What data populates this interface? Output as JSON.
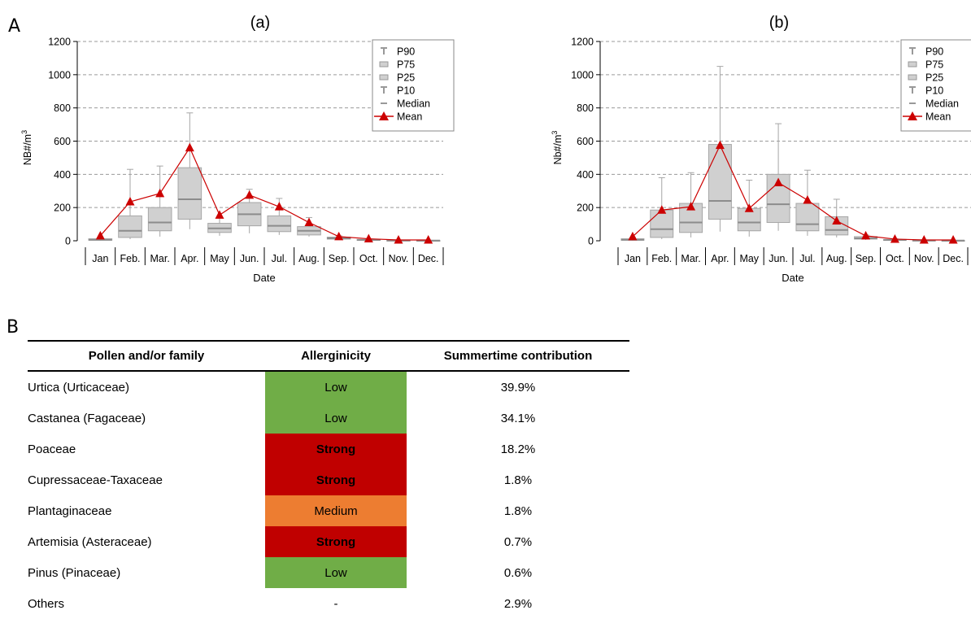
{
  "panels": {
    "A": "A",
    "B": "B"
  },
  "colors": {
    "box_fill": "#d0d0d0",
    "box_stroke": "#a6a6a6",
    "mean": "#cc0000",
    "grid": "#9a9a9a",
    "low": "#70ad47",
    "strong": "#c00000",
    "medium": "#ed7d31"
  },
  "chart_data": [
    {
      "type": "box",
      "title": "(a)",
      "xlabel": "Date",
      "ylabel": "NB#/m3",
      "ylabel_main": "NB#/m",
      "ylabel_sup": "3",
      "ylim": [
        0,
        1200
      ],
      "yticks": [
        "0",
        "200",
        "400",
        "600",
        "800",
        "1000",
        "1200"
      ],
      "grid": true,
      "legend_position": "top-right",
      "legend": [
        "P90",
        "P75",
        "P25",
        "P10",
        "Median",
        "Mean"
      ],
      "categories": [
        "Jan",
        "Feb.",
        "Mar.",
        "Apr.",
        "May",
        "Jun.",
        "Jul.",
        "Aug.",
        "Sep.",
        "Oct.",
        "Nov.",
        "Dec."
      ],
      "p10": [
        1,
        10,
        25,
        70,
        30,
        45,
        35,
        25,
        5,
        2,
        1,
        1
      ],
      "p25": [
        3,
        20,
        60,
        130,
        50,
        90,
        55,
        35,
        10,
        3,
        1,
        1
      ],
      "median": [
        6,
        60,
        110,
        250,
        75,
        160,
        90,
        60,
        15,
        5,
        2,
        1
      ],
      "p75": [
        12,
        150,
        200,
        440,
        105,
        230,
        150,
        85,
        22,
        8,
        3,
        2
      ],
      "p90": [
        20,
        430,
        450,
        770,
        140,
        310,
        255,
        140,
        30,
        12,
        5,
        3
      ],
      "mean": [
        30,
        235,
        285,
        560,
        155,
        275,
        205,
        110,
        25,
        12,
        5,
        5
      ]
    },
    {
      "type": "box",
      "title": "(b)",
      "xlabel": "Date",
      "ylabel": "Nb#/m3",
      "ylabel_main": "Nb#/m",
      "ylabel_sup": "3",
      "ylim": [
        0,
        1200
      ],
      "yticks": [
        "0",
        "200",
        "400",
        "600",
        "800",
        "1000",
        "1200"
      ],
      "grid": true,
      "legend_position": "top-right",
      "legend": [
        "P90",
        "P75",
        "P25",
        "P10",
        "Median",
        "Mean"
      ],
      "categories": [
        "Jan",
        "Feb.",
        "Mar.",
        "Apr.",
        "May",
        "Jun.",
        "Jul.",
        "Aug.",
        "Sep.",
        "Oct.",
        "Nov.",
        "Dec."
      ],
      "p10": [
        1,
        10,
        20,
        55,
        25,
        60,
        30,
        20,
        5,
        2,
        1,
        1
      ],
      "p25": [
        3,
        20,
        50,
        130,
        60,
        110,
        60,
        35,
        10,
        3,
        1,
        1
      ],
      "median": [
        6,
        70,
        110,
        240,
        110,
        220,
        100,
        65,
        15,
        5,
        2,
        1
      ],
      "p75": [
        12,
        185,
        225,
        580,
        195,
        400,
        225,
        145,
        25,
        8,
        3,
        2
      ],
      "p90": [
        20,
        380,
        410,
        1050,
        365,
        705,
        425,
        250,
        35,
        12,
        5,
        3
      ],
      "mean": [
        25,
        185,
        205,
        575,
        195,
        350,
        245,
        120,
        30,
        10,
        5,
        5
      ]
    }
  ],
  "table": {
    "headers": [
      "Pollen and/or family",
      "Allerginicity",
      "Summertime contribution"
    ],
    "rows": [
      {
        "name": "Urtica (Urticaceae)",
        "allergy": "Low",
        "level": "low",
        "contribution": "39.9%"
      },
      {
        "name": "Castanea (Fagaceae)",
        "allergy": "Low",
        "level": "low",
        "contribution": "34.1%"
      },
      {
        "name": "Poaceae",
        "allergy": "Strong",
        "level": "strong",
        "contribution": "18.2%"
      },
      {
        "name": "Cupressaceae-Taxaceae",
        "allergy": "Strong",
        "level": "strong",
        "contribution": "1.8%"
      },
      {
        "name": "Plantaginaceae",
        "allergy": "Medium",
        "level": "medium",
        "contribution": "1.8%"
      },
      {
        "name": "Artemisia (Asteraceae)",
        "allergy": "Strong",
        "level": "strong",
        "contribution": "0.7%"
      },
      {
        "name": "Pinus (Pinaceae)",
        "allergy": "Low",
        "level": "low",
        "contribution": "0.6%"
      },
      {
        "name": "Others",
        "allergy": "-",
        "level": "none",
        "contribution": "2.9%"
      }
    ]
  }
}
